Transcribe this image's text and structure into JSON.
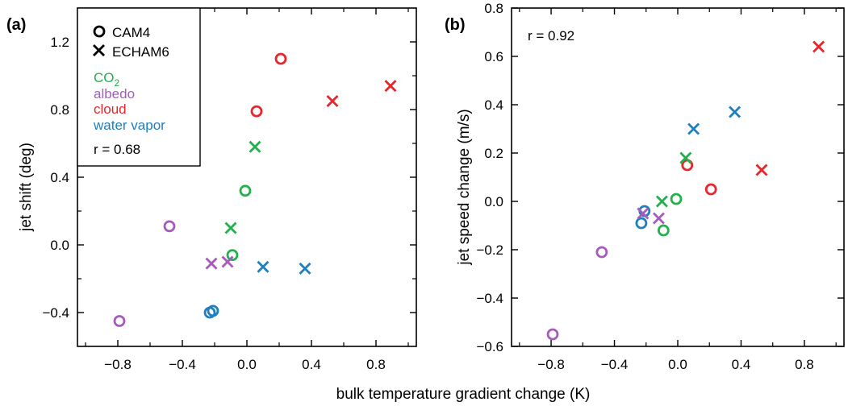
{
  "figure": {
    "shared_xlabel": "bulk temperature gradient change (K)"
  },
  "colors": {
    "CO2": "#22b14c",
    "albedo": "#a65bbd",
    "cloud": "#e8262b",
    "water_vapor": "#1f7fbf"
  },
  "legend": {
    "model_cam4": "CAM4",
    "model_echam6": "ECHAM6",
    "forcing_co2": "CO",
    "forcing_co2_subscript": "2",
    "forcing_albedo": "albedo",
    "forcing_cloud": "cloud",
    "forcing_water_vapor": "water vapor"
  },
  "chart_data": [
    {
      "type": "scatter",
      "panel_label": "(a)",
      "xlabel": "",
      "ylabel": "jet shift (deg)",
      "correlation": "r = 0.68",
      "xlim": [
        -1.05,
        1.05
      ],
      "ylim": [
        -0.6,
        1.4
      ],
      "xticks": [
        -0.8,
        -0.4,
        0.0,
        0.4,
        0.8
      ],
      "xtick_labels": [
        "−0.8",
        "−0.4",
        "0.0",
        "0.4",
        "0.8"
      ],
      "yticks": [
        -0.4,
        0.0,
        0.4,
        0.8,
        1.2
      ],
      "ytick_labels": [
        "−0.4",
        "0.0",
        "0.4",
        "0.8",
        "1.2"
      ],
      "points": [
        {
          "model": "CAM4",
          "forcing": "CO2",
          "x": -0.01,
          "y": 0.32
        },
        {
          "model": "CAM4",
          "forcing": "CO2",
          "x": -0.09,
          "y": -0.06
        },
        {
          "model": "CAM4",
          "forcing": "albedo",
          "x": -0.48,
          "y": 0.11
        },
        {
          "model": "CAM4",
          "forcing": "albedo",
          "x": -0.79,
          "y": -0.45
        },
        {
          "model": "CAM4",
          "forcing": "cloud",
          "x": 0.21,
          "y": 1.1
        },
        {
          "model": "CAM4",
          "forcing": "cloud",
          "x": 0.06,
          "y": 0.79
        },
        {
          "model": "CAM4",
          "forcing": "water_vapor",
          "x": -0.23,
          "y": -0.4
        },
        {
          "model": "CAM4",
          "forcing": "water_vapor",
          "x": -0.21,
          "y": -0.39
        },
        {
          "model": "ECHAM6",
          "forcing": "CO2",
          "x": 0.05,
          "y": 0.58
        },
        {
          "model": "ECHAM6",
          "forcing": "CO2",
          "x": -0.1,
          "y": 0.1
        },
        {
          "model": "ECHAM6",
          "forcing": "albedo",
          "x": -0.22,
          "y": -0.11
        },
        {
          "model": "ECHAM6",
          "forcing": "albedo",
          "x": -0.12,
          "y": -0.1
        },
        {
          "model": "ECHAM6",
          "forcing": "cloud",
          "x": 0.53,
          "y": 0.85
        },
        {
          "model": "ECHAM6",
          "forcing": "cloud",
          "x": 0.89,
          "y": 0.94
        },
        {
          "model": "ECHAM6",
          "forcing": "water_vapor",
          "x": 0.1,
          "y": -0.13
        },
        {
          "model": "ECHAM6",
          "forcing": "water_vapor",
          "x": 0.36,
          "y": -0.14
        }
      ]
    },
    {
      "type": "scatter",
      "panel_label": "(b)",
      "xlabel": "",
      "ylabel": "jet speed change (m/s)",
      "correlation": "r = 0.92",
      "xlim": [
        -1.05,
        1.05
      ],
      "ylim": [
        -0.6,
        0.8
      ],
      "xticks": [
        -0.8,
        -0.4,
        0.0,
        0.4,
        0.8
      ],
      "xtick_labels": [
        "−0.8",
        "−0.4",
        "0.0",
        "0.4",
        "0.8"
      ],
      "yticks": [
        -0.6,
        -0.4,
        -0.2,
        0.0,
        0.2,
        0.4,
        0.6,
        0.8
      ],
      "ytick_labels": [
        "−0.6",
        "−0.4",
        "−0.2",
        "0.0",
        "0.2",
        "0.4",
        "0.6",
        "0.8"
      ],
      "points": [
        {
          "model": "CAM4",
          "forcing": "CO2",
          "x": -0.01,
          "y": 0.01
        },
        {
          "model": "CAM4",
          "forcing": "CO2",
          "x": -0.09,
          "y": -0.12
        },
        {
          "model": "CAM4",
          "forcing": "albedo",
          "x": -0.48,
          "y": -0.21
        },
        {
          "model": "CAM4",
          "forcing": "albedo",
          "x": -0.79,
          "y": -0.55
        },
        {
          "model": "CAM4",
          "forcing": "cloud",
          "x": 0.06,
          "y": 0.15
        },
        {
          "model": "CAM4",
          "forcing": "cloud",
          "x": 0.21,
          "y": 0.05
        },
        {
          "model": "CAM4",
          "forcing": "water_vapor",
          "x": -0.23,
          "y": -0.09
        },
        {
          "model": "CAM4",
          "forcing": "water_vapor",
          "x": -0.21,
          "y": -0.04
        },
        {
          "model": "ECHAM6",
          "forcing": "CO2",
          "x": 0.05,
          "y": 0.18
        },
        {
          "model": "ECHAM6",
          "forcing": "CO2",
          "x": -0.1,
          "y": 0.0
        },
        {
          "model": "ECHAM6",
          "forcing": "albedo",
          "x": -0.22,
          "y": -0.05
        },
        {
          "model": "ECHAM6",
          "forcing": "albedo",
          "x": -0.12,
          "y": -0.07
        },
        {
          "model": "ECHAM6",
          "forcing": "cloud",
          "x": 0.53,
          "y": 0.13
        },
        {
          "model": "ECHAM6",
          "forcing": "cloud",
          "x": 0.89,
          "y": 0.64
        },
        {
          "model": "ECHAM6",
          "forcing": "water_vapor",
          "x": 0.1,
          "y": 0.3
        },
        {
          "model": "ECHAM6",
          "forcing": "water_vapor",
          "x": 0.36,
          "y": 0.37
        }
      ]
    }
  ]
}
